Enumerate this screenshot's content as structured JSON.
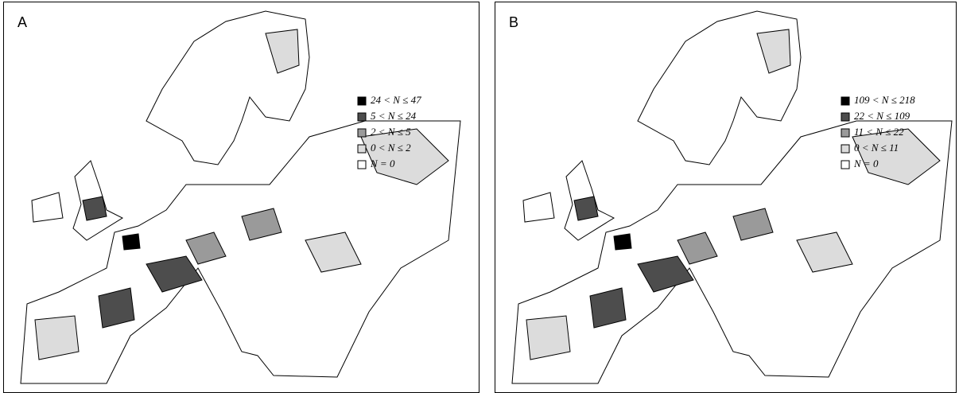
{
  "panels": [
    {
      "label": "A",
      "legend": [
        {
          "label": "24 < N ≤ 47",
          "color": "#000000"
        },
        {
          "label": "5 < N ≤ 24",
          "color": "#4d4d4d"
        },
        {
          "label": "2 < N ≤ 5",
          "color": "#9a9a9a"
        },
        {
          "label": "0 < N ≤ 2",
          "color": "#dcdcdc"
        },
        {
          "label": "N = 0",
          "color": "#ffffff"
        }
      ]
    },
    {
      "label": "B",
      "legend": [
        {
          "label": "109 < N ≤ 218",
          "color": "#000000"
        },
        {
          "label": "22 < N ≤ 109",
          "color": "#4d4d4d"
        },
        {
          "label": "11 < N ≤ 22",
          "color": "#9a9a9a"
        },
        {
          "label": "0 < N ≤ 11",
          "color": "#dcdcdc"
        },
        {
          "label": "N = 0",
          "color": "#ffffff"
        }
      ]
    }
  ]
}
